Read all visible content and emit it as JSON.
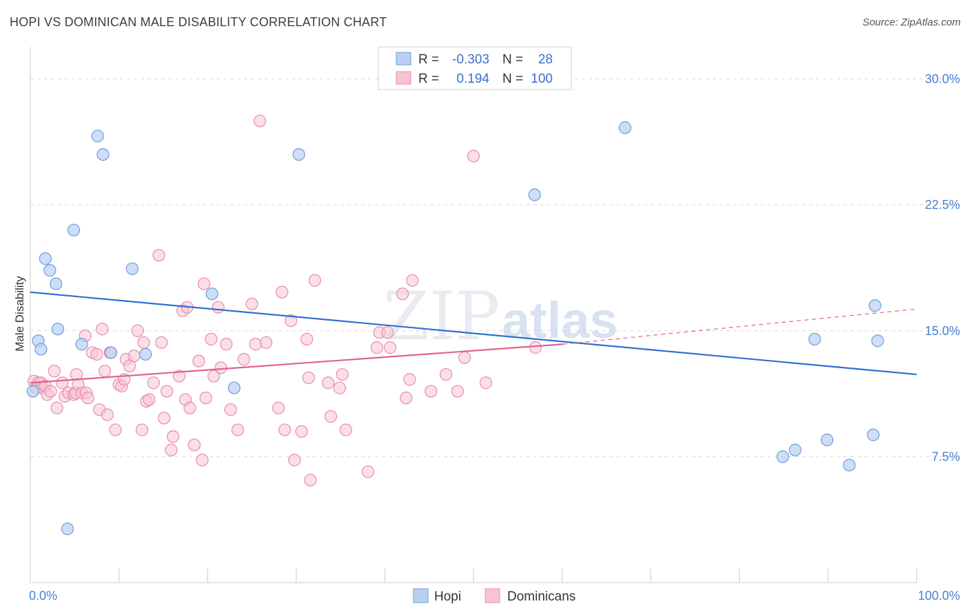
{
  "title": "HOPI VS DOMINICAN MALE DISABILITY CORRELATION CHART",
  "source": "Source: ZipAtlas.com",
  "watermark": {
    "part1": "ZIP",
    "part2": "atlas"
  },
  "colors": {
    "hopi_fill": "#b8d0f2",
    "hopi_stroke": "#6f9bdc",
    "hopi_line": "#2f6fd0",
    "dom_fill": "#f7c4d4",
    "dom_stroke": "#e98aab",
    "dom_line": "#e0628f",
    "accent_text": "#3b6fc9",
    "grid": "#d9d9d9"
  },
  "legend": {
    "rows": [
      {
        "series": "Hopi",
        "r_label": "R =",
        "r_value": "-0.303",
        "n_label": "N =",
        "n_value": "28"
      },
      {
        "series": "Dominicans",
        "r_label": "R =",
        "r_value": "0.194",
        "n_label": "N =",
        "n_value": "100"
      }
    ]
  },
  "chart_data": {
    "type": "scatter",
    "title": "HOPI VS DOMINICAN MALE DISABILITY CORRELATION CHART",
    "xlabel": "",
    "ylabel": "Male Disability",
    "xlim": [
      0,
      100
    ],
    "ylim": [
      0,
      31.5
    ],
    "x_tick_labels": [
      "0.0%",
      "100.0%"
    ],
    "y_ticks": [
      7.5,
      15.0,
      22.5,
      30.0
    ],
    "y_tick_labels": [
      "7.5%",
      "15.0%",
      "22.5%",
      "30.0%"
    ],
    "grid": true,
    "legend_position": "top-center",
    "series": [
      {
        "name": "Hopi",
        "points": [
          [
            0.3,
            11.4
          ],
          [
            0.9,
            14.4
          ],
          [
            1.2,
            13.9
          ],
          [
            1.7,
            19.3
          ],
          [
            2.2,
            18.6
          ],
          [
            2.9,
            17.8
          ],
          [
            3.1,
            15.1
          ],
          [
            4.2,
            3.2
          ],
          [
            4.9,
            21.0
          ],
          [
            5.8,
            14.2
          ],
          [
            7.6,
            26.6
          ],
          [
            8.2,
            25.5
          ],
          [
            9.1,
            13.7
          ],
          [
            11.5,
            18.7
          ],
          [
            13.0,
            13.6
          ],
          [
            20.5,
            17.2
          ],
          [
            23.0,
            11.6
          ],
          [
            30.3,
            25.5
          ],
          [
            56.9,
            23.1
          ],
          [
            67.1,
            27.1
          ],
          [
            84.9,
            7.5
          ],
          [
            86.3,
            7.9
          ],
          [
            88.5,
            14.5
          ],
          [
            89.9,
            8.5
          ],
          [
            92.4,
            7.0
          ],
          [
            95.1,
            8.8
          ],
          [
            95.3,
            16.5
          ],
          [
            95.6,
            14.4
          ]
        ],
        "trend": {
          "x": [
            0,
            100
          ],
          "y": [
            17.3,
            12.4
          ]
        }
      },
      {
        "name": "Dominicans",
        "points": [
          [
            0.4,
            12.0
          ],
          [
            0.7,
            11.6
          ],
          [
            0.9,
            11.9
          ],
          [
            1.2,
            11.9
          ],
          [
            1.4,
            11.6
          ],
          [
            1.7,
            11.7
          ],
          [
            1.9,
            11.2
          ],
          [
            2.3,
            11.4
          ],
          [
            2.7,
            12.6
          ],
          [
            3.0,
            10.4
          ],
          [
            3.6,
            11.9
          ],
          [
            3.9,
            11.1
          ],
          [
            4.3,
            11.3
          ],
          [
            4.9,
            11.2
          ],
          [
            5.1,
            11.3
          ],
          [
            5.2,
            12.4
          ],
          [
            5.4,
            11.8
          ],
          [
            5.8,
            11.3
          ],
          [
            6.2,
            14.7
          ],
          [
            6.3,
            11.3
          ],
          [
            6.5,
            11.0
          ],
          [
            7.0,
            13.7
          ],
          [
            7.5,
            13.6
          ],
          [
            7.8,
            10.3
          ],
          [
            8.1,
            15.1
          ],
          [
            8.4,
            12.6
          ],
          [
            8.7,
            10.0
          ],
          [
            9.0,
            13.7
          ],
          [
            9.6,
            9.1
          ],
          [
            10.0,
            11.8
          ],
          [
            10.3,
            11.7
          ],
          [
            10.6,
            12.1
          ],
          [
            10.8,
            13.3
          ],
          [
            11.2,
            12.9
          ],
          [
            11.7,
            13.5
          ],
          [
            12.1,
            15.0
          ],
          [
            12.6,
            9.1
          ],
          [
            12.8,
            14.3
          ],
          [
            13.1,
            10.8
          ],
          [
            13.4,
            10.9
          ],
          [
            13.9,
            11.9
          ],
          [
            14.5,
            19.5
          ],
          [
            14.8,
            14.3
          ],
          [
            15.1,
            9.8
          ],
          [
            15.4,
            11.4
          ],
          [
            15.9,
            7.9
          ],
          [
            16.1,
            8.7
          ],
          [
            16.8,
            12.3
          ],
          [
            17.2,
            16.2
          ],
          [
            17.5,
            10.9
          ],
          [
            17.7,
            16.4
          ],
          [
            18.0,
            10.4
          ],
          [
            18.5,
            8.2
          ],
          [
            19.0,
            13.2
          ],
          [
            19.4,
            7.3
          ],
          [
            19.6,
            17.8
          ],
          [
            19.8,
            11.0
          ],
          [
            20.4,
            14.5
          ],
          [
            20.7,
            12.3
          ],
          [
            21.2,
            16.4
          ],
          [
            21.5,
            12.8
          ],
          [
            22.1,
            14.2
          ],
          [
            22.6,
            10.3
          ],
          [
            23.4,
            9.1
          ],
          [
            24.1,
            13.3
          ],
          [
            25.0,
            16.6
          ],
          [
            25.4,
            14.2
          ],
          [
            25.9,
            27.5
          ],
          [
            26.6,
            14.3
          ],
          [
            28.0,
            10.4
          ],
          [
            28.4,
            17.3
          ],
          [
            28.7,
            9.1
          ],
          [
            29.4,
            15.6
          ],
          [
            29.8,
            7.3
          ],
          [
            30.6,
            9.0
          ],
          [
            31.2,
            14.5
          ],
          [
            31.4,
            12.2
          ],
          [
            31.6,
            6.1
          ],
          [
            32.1,
            18.0
          ],
          [
            33.6,
            11.9
          ],
          [
            33.9,
            9.9
          ],
          [
            34.9,
            11.6
          ],
          [
            35.2,
            12.4
          ],
          [
            35.6,
            9.1
          ],
          [
            38.1,
            6.6
          ],
          [
            39.1,
            14.0
          ],
          [
            39.4,
            14.9
          ],
          [
            40.3,
            14.9
          ],
          [
            40.6,
            14.0
          ],
          [
            42.0,
            17.2
          ],
          [
            42.4,
            11.0
          ],
          [
            42.8,
            12.1
          ],
          [
            43.1,
            18.0
          ],
          [
            45.2,
            11.4
          ],
          [
            46.9,
            12.4
          ],
          [
            48.2,
            11.4
          ],
          [
            49.0,
            13.4
          ],
          [
            50.0,
            25.4
          ],
          [
            51.4,
            11.9
          ],
          [
            57.0,
            14.0
          ]
        ],
        "trend": {
          "x": [
            0,
            60.1
          ],
          "y": [
            11.9,
            14.2
          ]
        },
        "trend_extension": {
          "x": [
            60.1,
            100
          ],
          "y": [
            14.2,
            16.3
          ]
        }
      }
    ]
  },
  "bottom_legend": [
    "Hopi",
    "Dominicans"
  ]
}
